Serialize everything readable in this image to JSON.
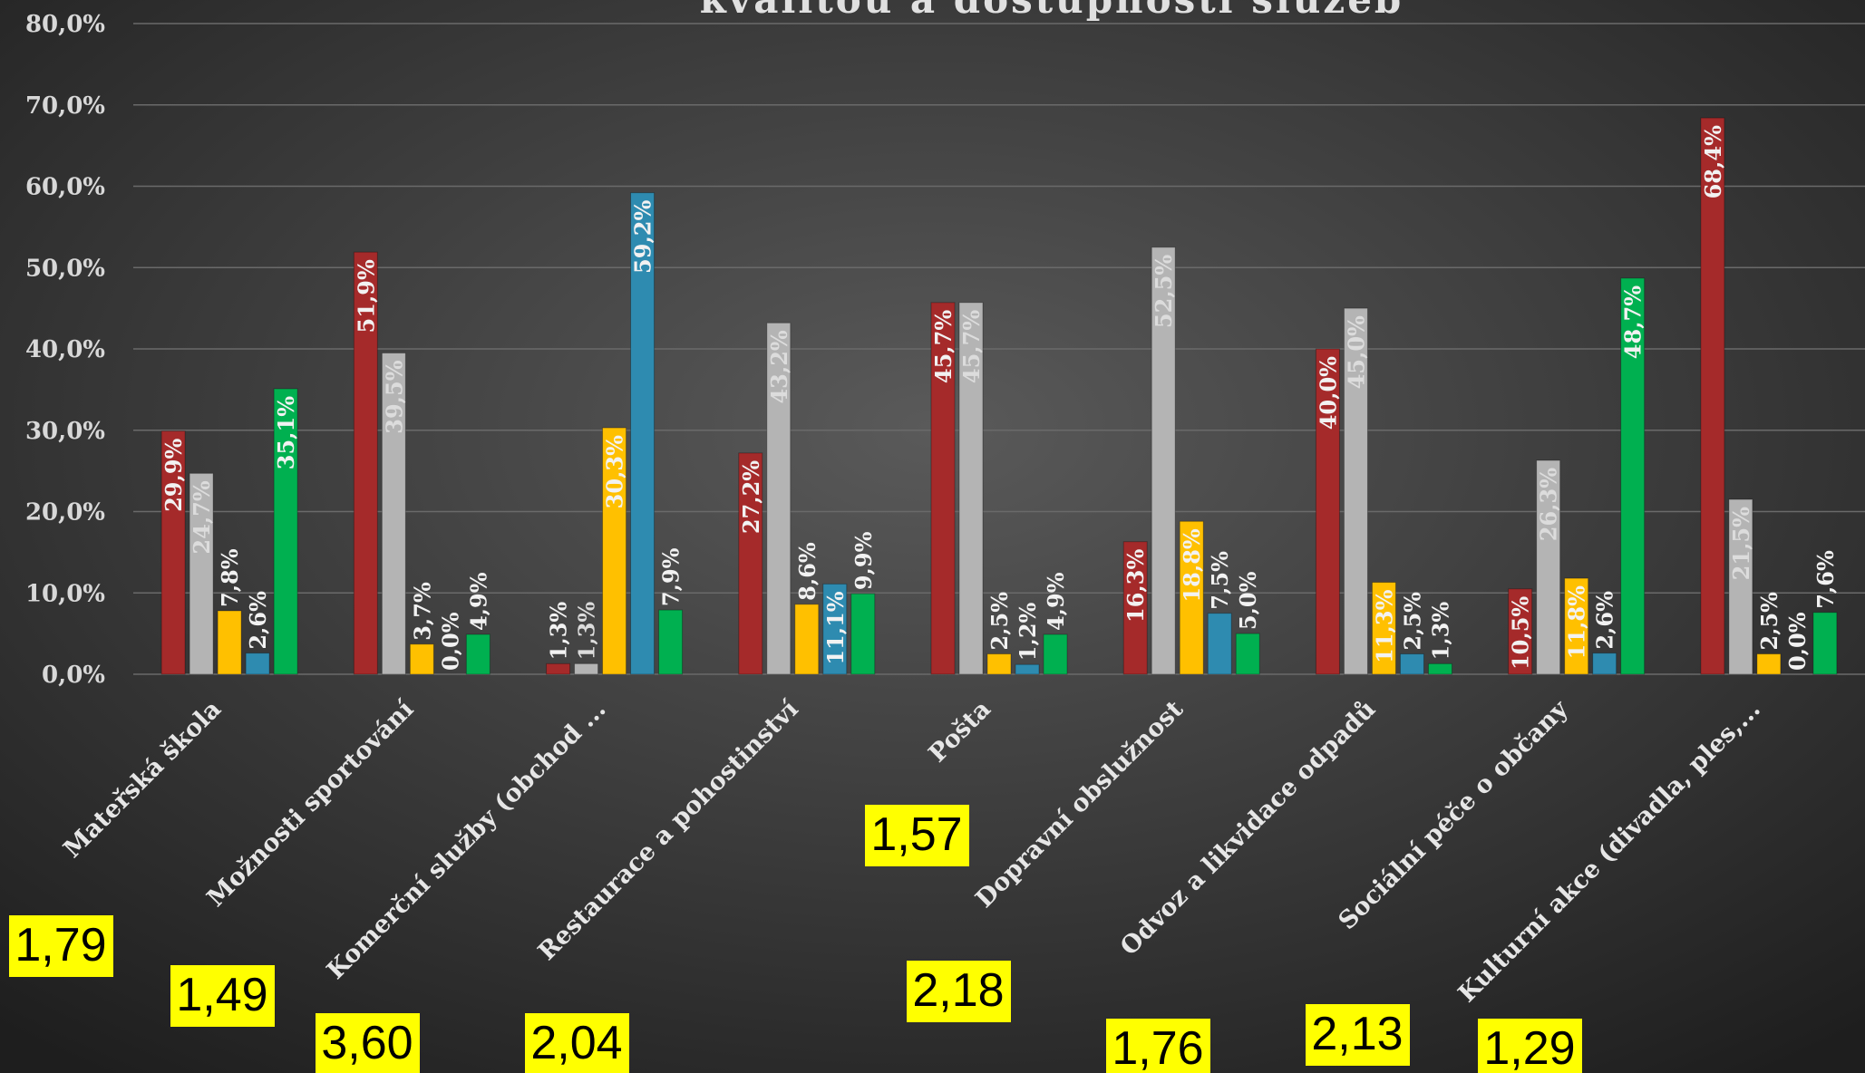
{
  "chart_data": {
    "type": "bar",
    "title": "kvalitou a dostupnosti služeb",
    "categories": [
      "Mateřská škola",
      "Možnosti sportování",
      "Komerční služby (obchod ...",
      "Restaurace a pohostinství",
      "Pošta",
      "Dopravní obslužnost",
      "Odvoz a likvidace odpadů",
      "Sociální péče o občany",
      "Kulturní akce (divadla, ples,..."
    ],
    "series": [
      {
        "color": "#a52a2a",
        "values": [
          29.9,
          51.9,
          1.3,
          27.2,
          45.7,
          16.3,
          40.0,
          10.5,
          68.4
        ],
        "value_labels": [
          "29,9%",
          "51,9%",
          "1,3%",
          "27,2%",
          "45,7%",
          "16,3%",
          "40,0%",
          "10,5%",
          "68,4%"
        ]
      },
      {
        "color": "#b4b4b4",
        "values": [
          24.7,
          39.5,
          1.3,
          43.2,
          45.7,
          52.5,
          45.0,
          26.3,
          21.5
        ],
        "value_labels": [
          "24,7%",
          "39,5%",
          "1,3%",
          "43,2%",
          "45,7%",
          "52,5%",
          "45,0%",
          "26,3%",
          "21,5%"
        ]
      },
      {
        "color": "#ffc000",
        "values": [
          7.8,
          3.7,
          30.3,
          8.6,
          2.5,
          18.8,
          11.3,
          11.8,
          2.5
        ],
        "value_labels": [
          "7,8%",
          "3,7%",
          "30,3%",
          "8,6%",
          "2,5%",
          "18,8%",
          "11,3%",
          "11,8%",
          "2,5%"
        ]
      },
      {
        "color": "#2e8bb0",
        "values": [
          2.6,
          0.0,
          59.2,
          11.1,
          1.2,
          7.5,
          2.5,
          2.6,
          0.0
        ],
        "value_labels": [
          "2,6%",
          "0,0%",
          "59,2%",
          "11,1%",
          "1,2%",
          "7,5%",
          "2,5%",
          "2,6%",
          "0,0%"
        ]
      },
      {
        "color": "#00b050",
        "values": [
          35.1,
          4.9,
          7.9,
          9.9,
          4.9,
          5.0,
          1.3,
          48.7,
          7.6
        ],
        "value_labels": [
          "35,1%",
          "4,9%",
          "7,9%",
          "9,9%",
          "4,9%",
          "5,0%",
          "1,3%",
          "48,7%",
          "7,6%"
        ]
      }
    ],
    "ylim": [
      0,
      80
    ],
    "yticks": [
      {
        "value": 0,
        "label": "0,0%"
      },
      {
        "value": 10,
        "label": "10,0%"
      },
      {
        "value": 20,
        "label": "20,0%"
      },
      {
        "value": 30,
        "label": "30,0%"
      },
      {
        "value": 40,
        "label": "40,0%"
      },
      {
        "value": 50,
        "label": "50,0%"
      },
      {
        "value": 60,
        "label": "60,0%"
      },
      {
        "value": 70,
        "label": "70,0%"
      },
      {
        "value": 80,
        "label": "80,0%"
      }
    ],
    "grid": true,
    "annotations": [
      "1,79",
      "1,49",
      "3,60",
      "2,04",
      "1,57",
      "2,18",
      "1,76",
      "2,13",
      "1,29"
    ]
  }
}
